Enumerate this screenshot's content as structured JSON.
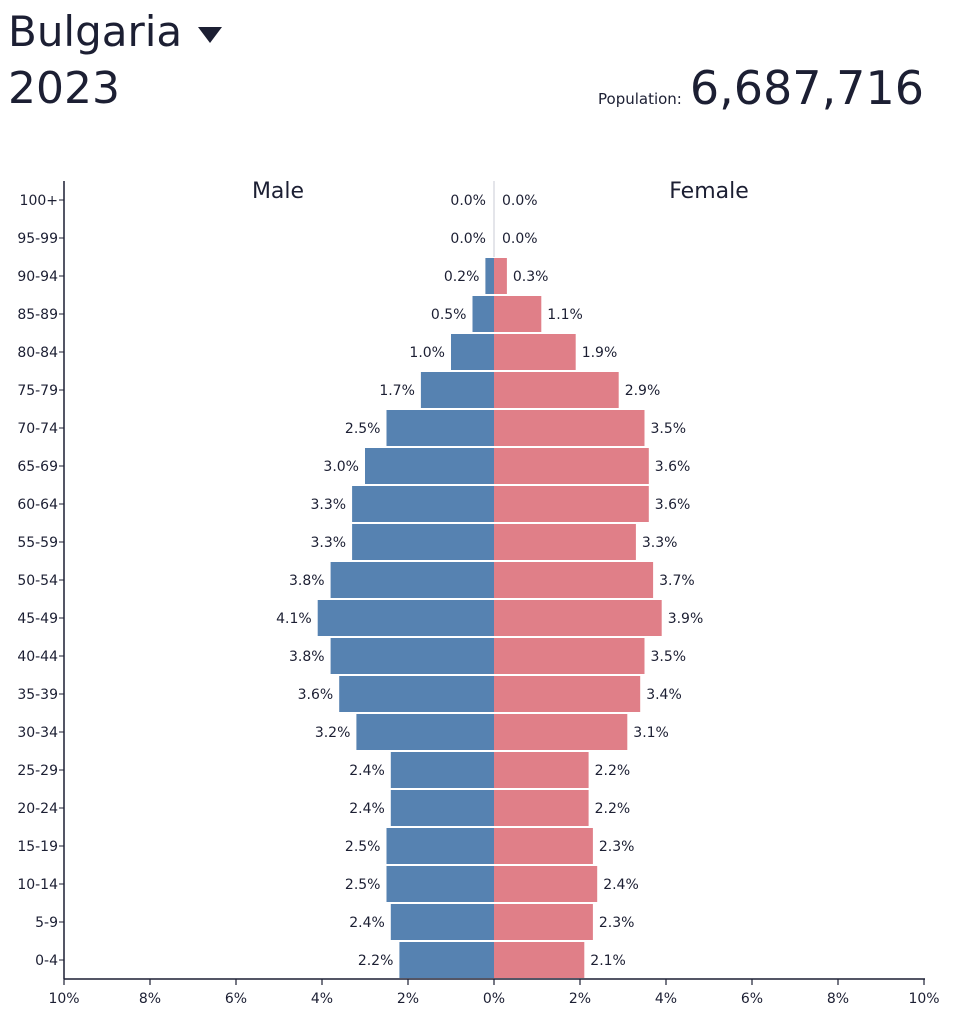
{
  "header": {
    "country": "Bulgaria",
    "year": "2023",
    "population_label": "Population:",
    "population_value": "6,687,716"
  },
  "colors": {
    "male": "#5682b1",
    "female": "#e07f88",
    "text": "#1c1f33",
    "axis": "#1c1f33"
  },
  "chart_data": {
    "type": "bar",
    "orientation": "horizontal-pyramid",
    "male_label": "Male",
    "female_label": "Female",
    "categories": [
      "100+",
      "95-99",
      "90-94",
      "85-89",
      "80-84",
      "75-79",
      "70-74",
      "65-69",
      "60-64",
      "55-59",
      "50-54",
      "45-49",
      "40-44",
      "35-39",
      "30-34",
      "25-29",
      "20-24",
      "15-19",
      "10-14",
      "5-9",
      "0-4"
    ],
    "series": [
      {
        "name": "Male",
        "values": [
          0.0,
          0.0,
          0.2,
          0.5,
          1.0,
          1.7,
          2.5,
          3.0,
          3.3,
          3.3,
          3.8,
          4.1,
          3.8,
          3.6,
          3.2,
          2.4,
          2.4,
          2.5,
          2.5,
          2.4,
          2.2
        ],
        "labels": [
          "0.0%",
          "0.0%",
          "0.2%",
          "0.5%",
          "1.0%",
          "1.7%",
          "2.5%",
          "3.0%",
          "3.3%",
          "3.3%",
          "3.8%",
          "4.1%",
          "3.8%",
          "3.6%",
          "3.2%",
          "2.4%",
          "2.4%",
          "2.5%",
          "2.5%",
          "2.4%",
          "2.2%"
        ]
      },
      {
        "name": "Female",
        "values": [
          0.0,
          0.0,
          0.3,
          1.1,
          1.9,
          2.9,
          3.5,
          3.6,
          3.6,
          3.3,
          3.7,
          3.9,
          3.5,
          3.4,
          3.1,
          2.2,
          2.2,
          2.3,
          2.4,
          2.3,
          2.1
        ],
        "labels": [
          "0.0%",
          "0.0%",
          "0.3%",
          "1.1%",
          "1.9%",
          "2.9%",
          "3.5%",
          "3.6%",
          "3.6%",
          "3.3%",
          "3.7%",
          "3.9%",
          "3.5%",
          "3.4%",
          "3.1%",
          "2.2%",
          "2.2%",
          "2.3%",
          "2.4%",
          "2.3%",
          "2.1%"
        ]
      }
    ],
    "x_ticks": [
      {
        "value": -10,
        "label": "10%"
      },
      {
        "value": -8,
        "label": "8%"
      },
      {
        "value": -6,
        "label": "6%"
      },
      {
        "value": -4,
        "label": "4%"
      },
      {
        "value": -2,
        "label": "2%"
      },
      {
        "value": 0,
        "label": "0%"
      },
      {
        "value": 2,
        "label": "2%"
      },
      {
        "value": 4,
        "label": "4%"
      },
      {
        "value": 6,
        "label": "6%"
      },
      {
        "value": 8,
        "label": "8%"
      },
      {
        "value": 10,
        "label": "10%"
      }
    ],
    "xlim": [
      -10,
      10
    ],
    "grid": false
  }
}
